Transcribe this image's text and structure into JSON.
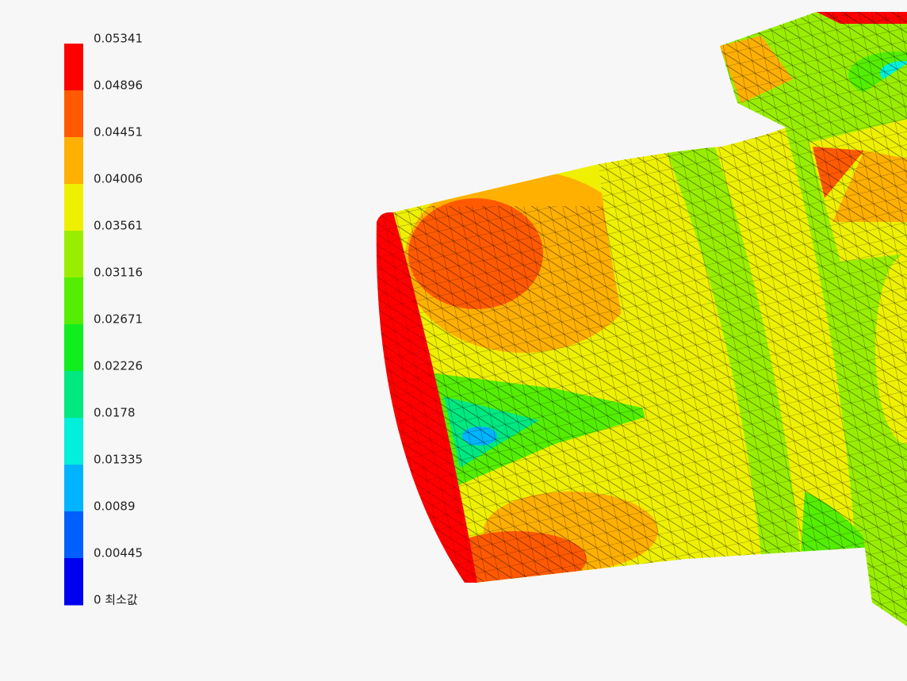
{
  "legend": {
    "labels": [
      "0.05341",
      "0.04896",
      "0.04451",
      "0.04006",
      "0.03561",
      "0.03116",
      "0.02671",
      "0.02226",
      "0.0178",
      "0.01335",
      "0.0089",
      "0.00445",
      "0 최소값"
    ],
    "colors": [
      "#fe0000",
      "#ff5a00",
      "#ffb000",
      "#eef000",
      "#99ee00",
      "#55ee00",
      "#10ee20",
      "#00e880",
      "#00f0dc",
      "#00b4ff",
      "#0060ff",
      "#0000f0"
    ]
  }
}
